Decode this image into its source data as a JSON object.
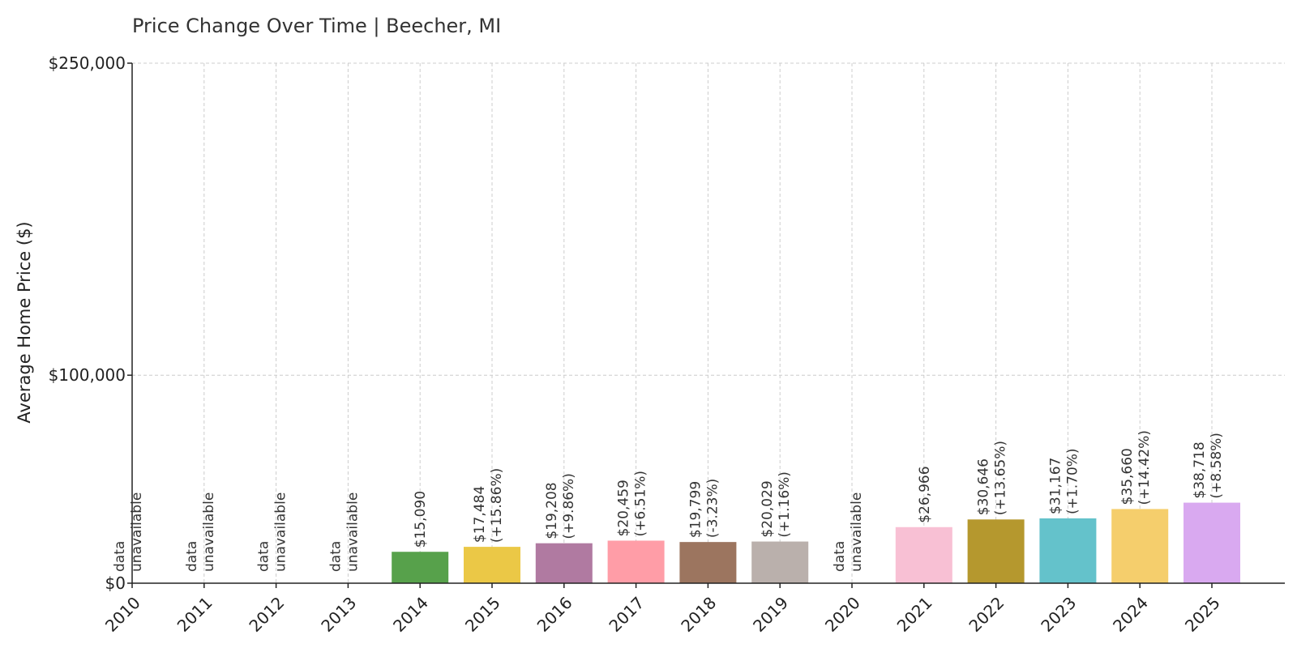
{
  "chart_data": {
    "type": "bar",
    "title": "Price Change Over Time | Beecher, MI",
    "xlabel": "",
    "ylabel": "Average Home Price ($)",
    "ylim": [
      0,
      250000
    ],
    "yticks": [
      {
        "value": 0,
        "label": "$0"
      },
      {
        "value": 100000,
        "label": "$100,000"
      },
      {
        "value": 250000,
        "label": "$250,000"
      }
    ],
    "grid": true,
    "unavailable_line1": "data",
    "unavailable_line2": "unavailable",
    "categories": [
      "2010",
      "2011",
      "2012",
      "2013",
      "2014",
      "2015",
      "2016",
      "2017",
      "2018",
      "2019",
      "2020",
      "2021",
      "2022",
      "2023",
      "2024",
      "2025"
    ],
    "values": [
      null,
      null,
      null,
      null,
      15090,
      17484,
      19208,
      20459,
      19799,
      20029,
      null,
      26966,
      30646,
      31167,
      35660,
      38718
    ],
    "value_labels": [
      "",
      "",
      "",
      "",
      "$15,090",
      "$17,484",
      "$19,208",
      "$20,459",
      "$19,799",
      "$20,029",
      "",
      "$26,966",
      "$30,646",
      "$31,167",
      "$35,660",
      "$38,718"
    ],
    "change_labels": [
      "",
      "",
      "",
      "",
      "",
      "(+15.86%)",
      "(+9.86%)",
      "(+6.51%)",
      "(-3.23%)",
      "(+1.16%)",
      "",
      "",
      "(+13.65%)",
      "(+1.70%)",
      "(+14.42%)",
      "(+8.58%)"
    ],
    "colors": [
      "",
      "",
      "",
      "",
      "#57a14b",
      "#ebc846",
      "#b07aa1",
      "#ff9da7",
      "#9c755f",
      "#bab0ac",
      "",
      "#f8c0d4",
      "#b5982e",
      "#64c2cb",
      "#f5ce6c",
      "#d9a9f0"
    ]
  }
}
